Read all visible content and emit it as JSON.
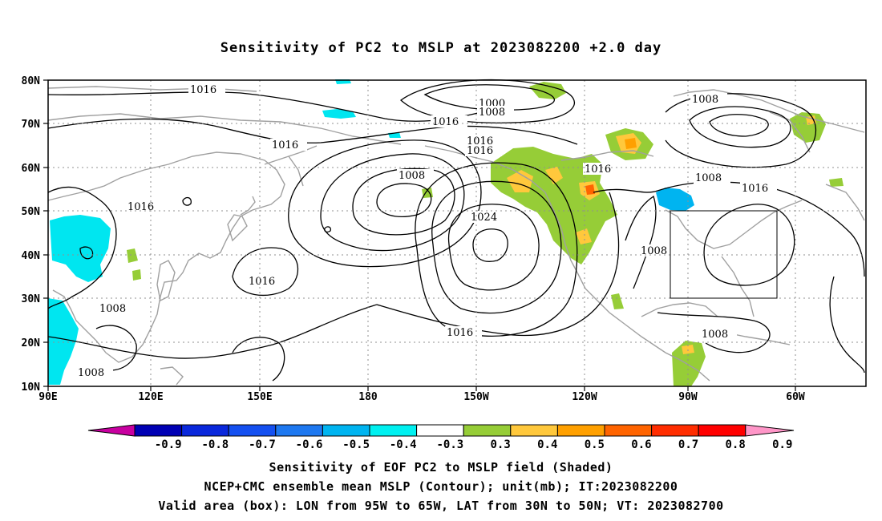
{
  "title": "Sensitivity of PC2 to MSLP at 2023082200 +2.0 day",
  "footer": {
    "line1": "Sensitivity of EOF PC2 to MSLP field (Shaded)",
    "line2": "NCEP+CMC ensemble mean MSLP (Contour); unit(mb); IT:2023082200",
    "line3": "Valid area (box): LON from 95W to 65W, LAT from 30N to 50N; VT: 2023082700"
  },
  "map": {
    "lon_ticks": [
      "90E",
      "120E",
      "150E",
      "180",
      "150W",
      "120W",
      "90W",
      "60W"
    ],
    "lat_ticks": [
      "80N",
      "70N",
      "60N",
      "50N",
      "40N",
      "30N",
      "20N",
      "10N"
    ],
    "valid_box": {
      "lon_from": "95W",
      "lon_to": "65W",
      "lat_from": "30N",
      "lat_to": "50N"
    }
  },
  "contour_labels": [
    "1016",
    "1000",
    "1008",
    "1016",
    "1016",
    "1016",
    "1016",
    "1008",
    "1016",
    "1008",
    "1016",
    "1016",
    "1024",
    "1016",
    "1008",
    "1008",
    "1016",
    "1008",
    "1008",
    "1008"
  ],
  "colorbar": {
    "labels": [
      "-0.9",
      "-0.8",
      "-0.7",
      "-0.6",
      "-0.5",
      "-0.4",
      "-0.3",
      "0.3",
      "0.4",
      "0.5",
      "0.6",
      "0.7",
      "0.8",
      "0.9"
    ],
    "colors": [
      "#0000b4",
      "#0a28dc",
      "#1450f0",
      "#1e78f0",
      "#00b4f0",
      "#00f0f0",
      "#ffffff",
      "#96cd37",
      "#ffc83c",
      "#ffa000",
      "#ff6400",
      "#ff2d00",
      "#ff0000"
    ],
    "low_arrow_color": "#c800a0",
    "high_arrow_color": "#ff96c8"
  },
  "colors": {
    "coast": "#a0a0a0",
    "contour": "#000000",
    "negative": "#00e6f0",
    "positive_low": "#96cd37",
    "positive_mid": "#ffc83c",
    "positive_high": "#ff6400"
  }
}
